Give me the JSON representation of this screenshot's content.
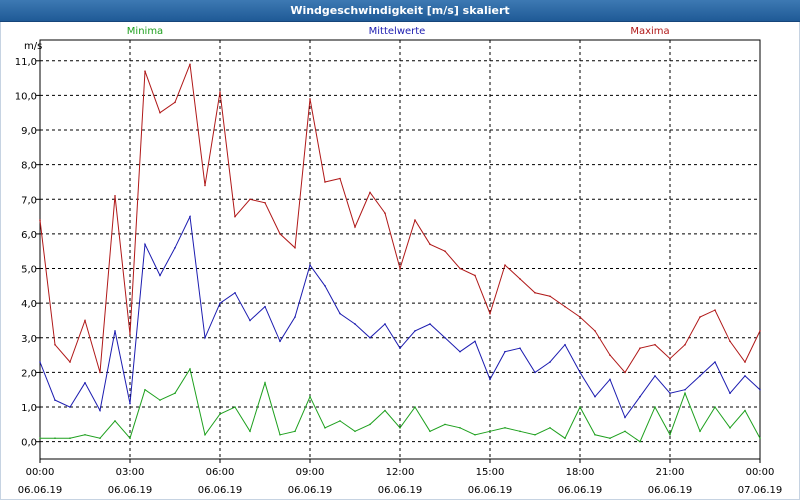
{
  "window": {
    "title": "Windgeschwindigkeit [m/s] skaliert"
  },
  "colors": {
    "min": "#1ea01e",
    "mean": "#1c1cb0",
    "max": "#b01818",
    "grid": "#000000"
  },
  "chart_data": {
    "type": "line",
    "title": "Windgeschwindigkeit [m/s] skaliert",
    "ylabel": "m/s",
    "xlabel": "",
    "ylim": [
      -0.5,
      11.6
    ],
    "xlim": [
      "2019-06-06 00:00",
      "2019-06-07 00:00"
    ],
    "grid": true,
    "legend_position": "top",
    "y_ticks": [
      "0,0",
      "1,0",
      "2,0",
      "3,0",
      "4,0",
      "5,0",
      "6,0",
      "7,0",
      "8,0",
      "9,0",
      "10,0",
      "11,0"
    ],
    "x_ticks": [
      {
        "time": "00:00",
        "date": "06.06.19"
      },
      {
        "time": "03:00",
        "date": "06.06.19"
      },
      {
        "time": "06:00",
        "date": "06.06.19"
      },
      {
        "time": "09:00",
        "date": "06.06.19"
      },
      {
        "time": "12:00",
        "date": "06.06.19"
      },
      {
        "time": "15:00",
        "date": "06.06.19"
      },
      {
        "time": "18:00",
        "date": "06.06.19"
      },
      {
        "time": "21:00",
        "date": "06.06.19"
      },
      {
        "time": "00:00",
        "date": "07.06.19"
      }
    ],
    "x": [
      "00:00",
      "00:30",
      "01:00",
      "01:30",
      "02:00",
      "02:30",
      "03:00",
      "03:30",
      "04:00",
      "04:30",
      "05:00",
      "05:30",
      "06:00",
      "06:30",
      "07:00",
      "07:30",
      "08:00",
      "08:30",
      "09:00",
      "09:30",
      "10:00",
      "10:30",
      "11:00",
      "11:30",
      "12:00",
      "12:30",
      "13:00",
      "13:30",
      "14:00",
      "14:30",
      "15:00",
      "15:30",
      "16:00",
      "16:30",
      "17:00",
      "17:30",
      "18:00",
      "18:30",
      "19:00",
      "19:30",
      "20:00",
      "20:30",
      "21:00",
      "21:30",
      "22:00",
      "22:30",
      "23:00",
      "23:30",
      "00:00"
    ],
    "series": [
      {
        "name": "Minima",
        "color": "#1ea01e",
        "values": [
          0.1,
          0.1,
          0.1,
          0.2,
          0.1,
          0.6,
          0.1,
          1.5,
          1.2,
          1.4,
          2.1,
          0.2,
          0.8,
          1.0,
          0.3,
          1.7,
          0.2,
          0.3,
          1.3,
          0.4,
          0.6,
          0.3,
          0.5,
          0.9,
          0.4,
          1.0,
          0.3,
          0.5,
          0.4,
          0.2,
          0.3,
          0.4,
          0.3,
          0.2,
          0.4,
          0.1,
          1.0,
          0.2,
          0.1,
          0.3,
          0.0,
          1.0,
          0.2,
          1.4,
          0.3,
          1.0,
          0.4,
          0.9,
          0.1
        ]
      },
      {
        "name": "Mittelwerte",
        "color": "#1c1cb0",
        "values": [
          2.3,
          1.2,
          1.0,
          1.7,
          0.9,
          3.2,
          1.1,
          5.7,
          4.8,
          5.6,
          6.5,
          3.0,
          4.0,
          4.3,
          3.5,
          3.9,
          2.9,
          3.6,
          5.1,
          4.5,
          3.7,
          3.4,
          3.0,
          3.4,
          2.7,
          3.2,
          3.4,
          3.0,
          2.6,
          2.9,
          1.8,
          2.6,
          2.7,
          2.0,
          2.3,
          2.8,
          2.0,
          1.3,
          1.8,
          0.7,
          1.3,
          1.9,
          1.4,
          1.5,
          1.9,
          2.3,
          1.4,
          1.9,
          1.5
        ]
      },
      {
        "name": "Maxima",
        "color": "#b01818",
        "values": [
          6.4,
          2.8,
          2.3,
          3.5,
          2.0,
          7.1,
          3.1,
          10.7,
          9.5,
          9.8,
          10.9,
          7.4,
          10.1,
          6.5,
          7.0,
          6.9,
          6.0,
          5.6,
          9.9,
          7.5,
          7.6,
          6.2,
          7.2,
          6.6,
          5.0,
          6.4,
          5.7,
          5.5,
          5.0,
          4.8,
          3.7,
          5.1,
          4.7,
          4.3,
          4.2,
          3.9,
          3.6,
          3.2,
          2.5,
          2.0,
          2.7,
          2.8,
          2.4,
          2.8,
          3.6,
          3.8,
          2.9,
          2.3,
          3.2
        ]
      }
    ]
  }
}
